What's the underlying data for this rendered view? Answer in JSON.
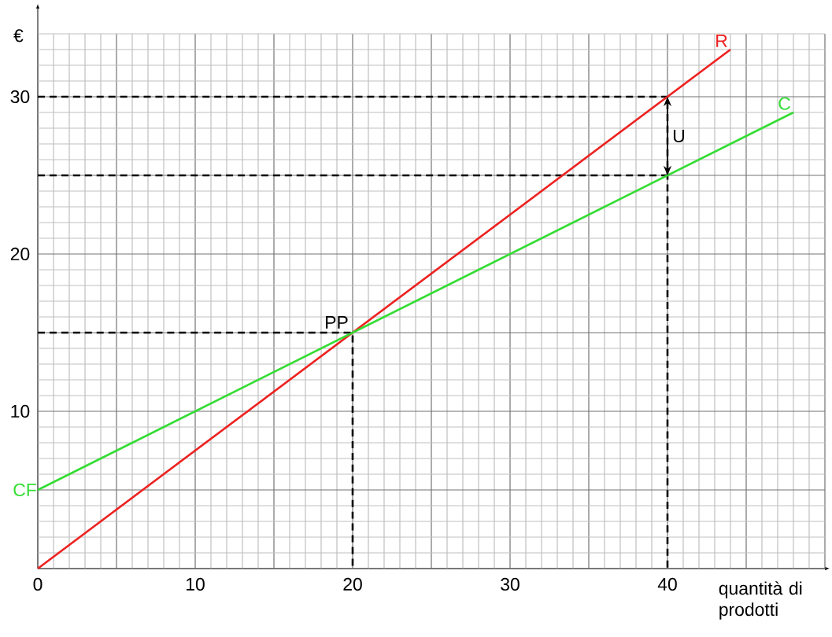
{
  "chart_data": {
    "type": "line",
    "xlabel": "quantità di prodotti",
    "ylabel": "€",
    "xlim": [
      0,
      50
    ],
    "ylim": [
      0,
      34
    ],
    "xticks": [
      0,
      10,
      20,
      30,
      40
    ],
    "yticks": [
      10,
      20,
      30
    ],
    "grid": true,
    "series": [
      {
        "name": "R",
        "color": "#ee2020",
        "x": [
          0,
          44
        ],
        "values": [
          0,
          33
        ]
      },
      {
        "name": "C",
        "color": "#33dd33",
        "x": [
          0,
          48
        ],
        "values": [
          5,
          29
        ]
      },
      {
        "color": "#000000",
        "line_style": "dashed",
        "x": [
          0,
          20,
          20
        ],
        "values": [
          15,
          15,
          0
        ]
      },
      {
        "color": "#000000",
        "line_style": "dashed",
        "x": [
          0,
          40,
          40
        ],
        "values": [
          30,
          30,
          0
        ]
      },
      {
        "color": "#000000",
        "line_style": "dashed",
        "x": [
          0,
          40
        ],
        "values": [
          25,
          25
        ]
      }
    ],
    "annotations": [
      {
        "text": "PP",
        "x": 20,
        "y": 15
      },
      {
        "text": "CF",
        "x": 0,
        "y": 5
      },
      {
        "text": "U",
        "x": 40,
        "y": 27.5
      }
    ]
  }
}
